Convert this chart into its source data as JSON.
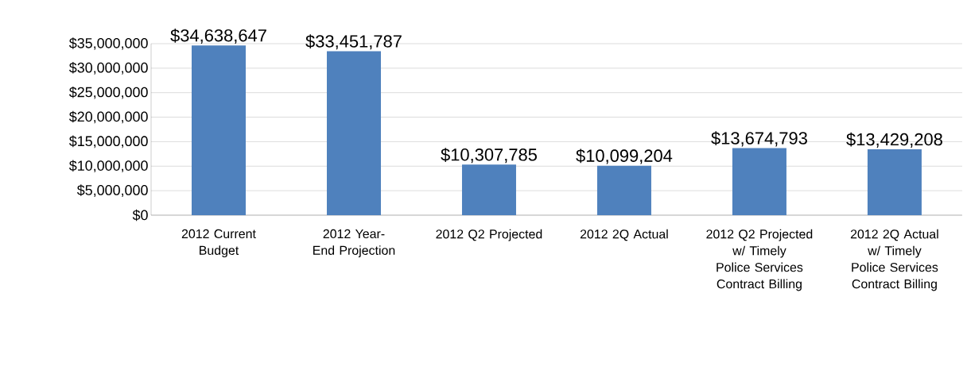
{
  "chart_data": {
    "type": "bar",
    "categories": [
      "2012 Current Budget",
      "2012 Year-End Projection",
      "2012 Q2 Projected",
      "2012 2Q Actual",
      "2012 Q2 Projected w/ Timely Police Services Contract Billing",
      "2012 2Q Actual w/ Timely Police Services Contract Billing"
    ],
    "values": [
      34638647,
      33451787,
      10307785,
      10099204,
      13674793,
      13429208
    ],
    "value_labels": [
      "$34,638,647",
      "$33,451,787",
      "$10,307,785",
      "$10,099,204",
      "$13,674,793",
      "$13,429,208"
    ],
    "color": "#4f81bd",
    "ylim": [
      0,
      35000000
    ],
    "yticks": [
      {
        "value": 0,
        "label": "$0"
      },
      {
        "value": 5000000,
        "label": "$5,000,000"
      },
      {
        "value": 10000000,
        "label": "$10,000,000"
      },
      {
        "value": 15000000,
        "label": "$15,000,000"
      },
      {
        "value": 20000000,
        "label": "$20,000,000"
      },
      {
        "value": 25000000,
        "label": "$25,000,000"
      },
      {
        "value": 30000000,
        "label": "$30,000,000"
      },
      {
        "value": 35000000,
        "label": "$35,000,000"
      }
    ],
    "grid": "y"
  }
}
